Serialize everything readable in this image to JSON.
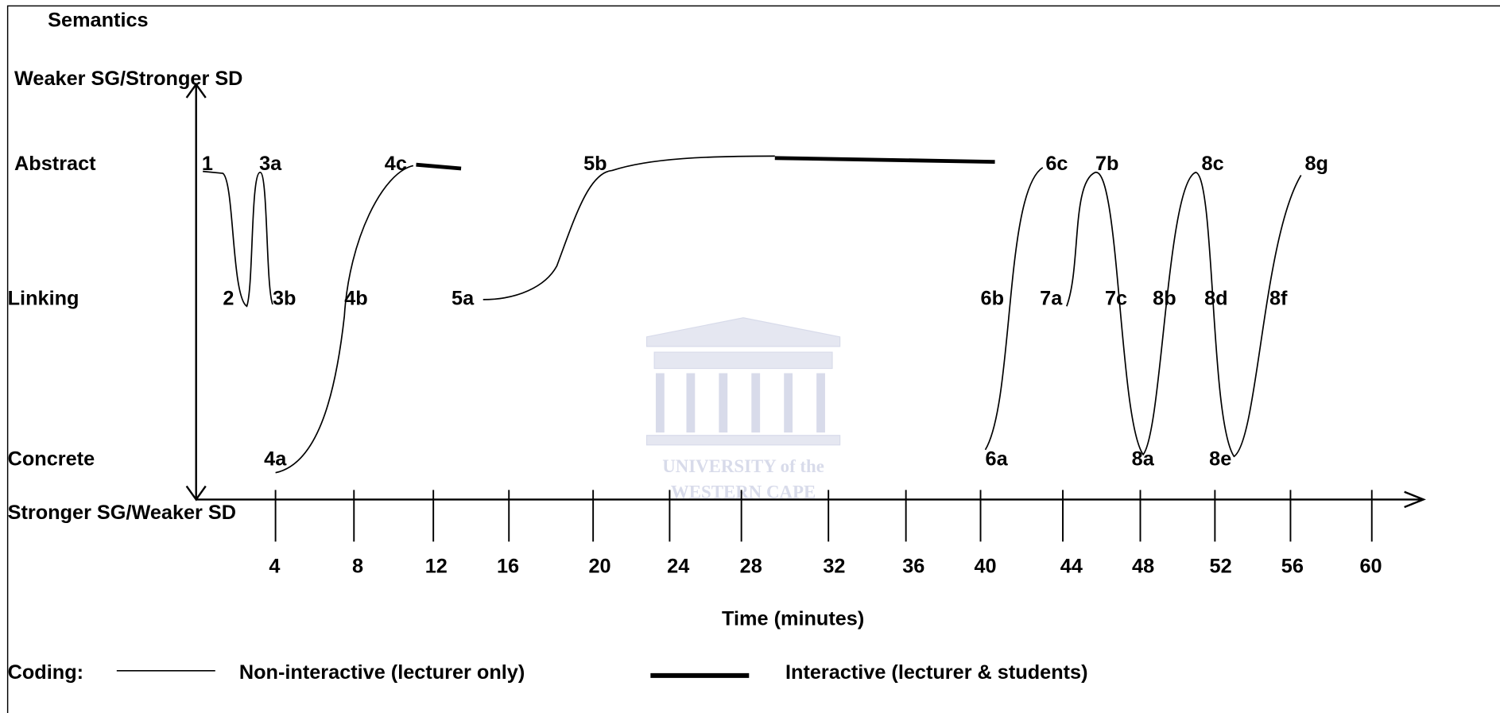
{
  "header": {
    "title": "Semantics"
  },
  "y_axis": {
    "top": "Weaker SG/Stronger SD",
    "levels": [
      "Abstract",
      "Linking",
      "Concrete"
    ],
    "bottom": "Stronger SG/Weaker SD"
  },
  "x_axis": {
    "label": "Time (minutes)",
    "ticks": [
      4,
      8,
      12,
      16,
      20,
      24,
      28,
      32,
      36,
      40,
      44,
      48,
      52,
      56,
      60
    ]
  },
  "points": [
    "1",
    "3a",
    "4c",
    "5b",
    "6c",
    "7b",
    "8c",
    "8g",
    "2",
    "3b",
    "4b",
    "5a",
    "6b",
    "7a",
    "7c",
    "8b",
    "8d",
    "8f",
    "4a",
    "6a",
    "8a",
    "8e"
  ],
  "legend": {
    "heading": "Coding:",
    "items": [
      "Non-interactive (lecturer only)",
      "Interactive (lecturer & students)"
    ]
  },
  "watermark": [
    "UNIVERSITY of the",
    "WESTERN CAPE"
  ]
}
